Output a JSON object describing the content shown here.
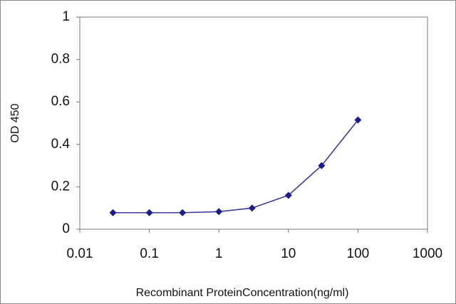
{
  "chart_data": {
    "type": "line",
    "x_label": "Recombinant ProteinConcentration(ng/ml)",
    "y_label": "OD 450",
    "x": [
      0.03,
      0.1,
      0.3,
      1,
      3,
      10,
      30,
      100
    ],
    "values": [
      0.078,
      0.078,
      0.078,
      0.083,
      0.1,
      0.16,
      0.3,
      0.515
    ],
    "color": "#3a3aa0",
    "marker_color": "#1c1c8c",
    "xscale": "log",
    "xlim": [
      0.01,
      1000
    ],
    "xticks": [
      0.01,
      0.1,
      1,
      10,
      100,
      1000
    ],
    "ylim": [
      0,
      1
    ],
    "yticks": [
      0,
      0.2,
      0.4,
      0.6,
      0.8,
      1
    ],
    "grid": false
  }
}
